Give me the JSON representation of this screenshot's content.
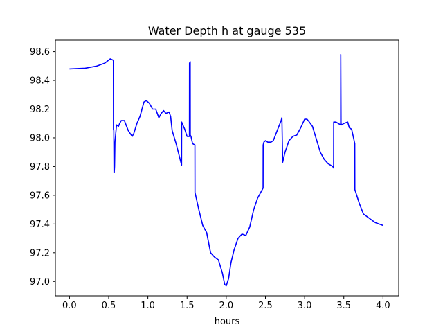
{
  "chart_data": {
    "type": "line",
    "title": "Water Depth h at gauge 535",
    "xlabel": "hours",
    "ylabel": "",
    "xlim": [
      -0.18,
      4.2
    ],
    "ylim": [
      96.9,
      98.68
    ],
    "grid": false,
    "xticks": [
      0.0,
      0.5,
      1.0,
      1.5,
      2.0,
      2.5,
      3.0,
      3.5,
      4.0
    ],
    "xtick_labels": [
      "0.0",
      "0.5",
      "1.0",
      "1.5",
      "2.0",
      "2.5",
      "3.0",
      "3.5",
      "4.0"
    ],
    "yticks": [
      97.0,
      97.2,
      97.4,
      97.6,
      97.8,
      98.0,
      98.2,
      98.4,
      98.6
    ],
    "ytick_labels": [
      "97.0",
      "97.2",
      "97.4",
      "97.6",
      "97.8",
      "98.0",
      "98.2",
      "98.4",
      "98.6"
    ],
    "series": [
      {
        "color": "#0000ff",
        "x": [
          0.0,
          0.2,
          0.35,
          0.45,
          0.52,
          0.56,
          0.561,
          0.565,
          0.568,
          0.571,
          0.575,
          0.58,
          0.6,
          0.625,
          0.64,
          0.66,
          0.7,
          0.75,
          0.8,
          0.82,
          0.86,
          0.9,
          0.95,
          0.98,
          1.02,
          1.06,
          1.1,
          1.14,
          1.17,
          1.2,
          1.23,
          1.27,
          1.29,
          1.31,
          1.36,
          1.43,
          1.431,
          1.47,
          1.5,
          1.53,
          1.531,
          1.54,
          1.541,
          1.55,
          1.57,
          1.6,
          1.601,
          1.65,
          1.7,
          1.75,
          1.8,
          1.85,
          1.9,
          1.95,
          1.98,
          2.0,
          2.03,
          2.06,
          2.1,
          2.15,
          2.2,
          2.25,
          2.3,
          2.35,
          2.4,
          2.47,
          2.471,
          2.48,
          2.5,
          2.53,
          2.57,
          2.6,
          2.65,
          2.7,
          2.71,
          2.72,
          2.75,
          2.8,
          2.85,
          2.9,
          2.95,
          3.0,
          3.03,
          3.06,
          3.1,
          3.15,
          3.2,
          3.25,
          3.3,
          3.36,
          3.37,
          3.371,
          3.4,
          3.46,
          3.461,
          3.465,
          3.471,
          3.5,
          3.55,
          3.57,
          3.6,
          3.64,
          3.641,
          3.7,
          3.75,
          3.8,
          3.85,
          3.9,
          3.95,
          4.0
        ],
        "y": [
          98.48,
          98.485,
          98.5,
          98.52,
          98.55,
          98.54,
          98.06,
          98.05,
          97.76,
          97.76,
          97.8,
          97.97,
          98.09,
          98.08,
          98.1,
          98.12,
          98.12,
          98.05,
          98.01,
          98.03,
          98.1,
          98.15,
          98.25,
          98.26,
          98.24,
          98.2,
          98.2,
          98.14,
          98.17,
          98.19,
          98.17,
          98.18,
          98.15,
          98.05,
          97.96,
          97.81,
          98.11,
          98.06,
          98.01,
          98.01,
          98.52,
          98.53,
          98.02,
          98.01,
          97.96,
          97.95,
          97.62,
          97.5,
          97.39,
          97.34,
          97.2,
          97.17,
          97.15,
          97.06,
          96.98,
          96.97,
          97.02,
          97.13,
          97.22,
          97.3,
          97.33,
          97.32,
          97.38,
          97.5,
          97.58,
          97.65,
          97.95,
          97.97,
          97.98,
          97.97,
          97.97,
          97.98,
          98.05,
          98.12,
          98.14,
          97.83,
          97.9,
          97.98,
          98.01,
          98.02,
          98.07,
          98.13,
          98.13,
          98.11,
          98.08,
          97.99,
          97.9,
          97.85,
          97.82,
          97.8,
          97.79,
          98.11,
          98.11,
          98.09,
          98.58,
          98.1,
          98.09,
          98.1,
          98.11,
          98.07,
          98.06,
          97.96,
          97.64,
          97.54,
          97.47,
          97.45,
          97.43,
          97.41,
          97.4,
          97.39
        ]
      }
    ]
  }
}
